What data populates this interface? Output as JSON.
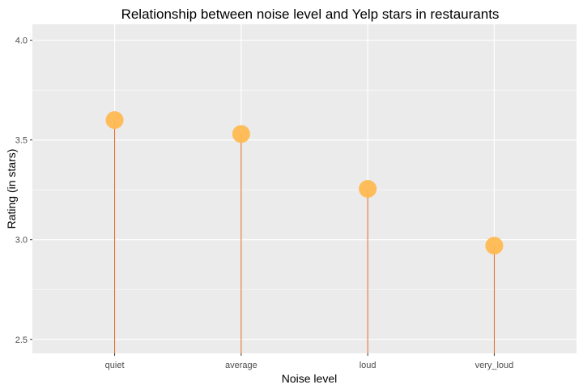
{
  "chart_data": {
    "type": "lollipop",
    "title": "Relationship between noise level and Yelp stars in restaurants",
    "xlabel": "Noise level",
    "ylabel": "Rating (in stars)",
    "categories": [
      "quiet",
      "average",
      "loud",
      "very_loud"
    ],
    "values": [
      3.6,
      3.53,
      3.255,
      2.97
    ],
    "ylim": [
      2.43,
      4.08
    ],
    "yticks": [
      2.5,
      3.0,
      3.5,
      4.0
    ],
    "ytick_labels": [
      "2.5",
      "3.0",
      "3.5",
      "4.0"
    ],
    "grid": true,
    "colors": {
      "panel": "#EBEBEB",
      "grid": "#FFFFFF",
      "stem": "#E0631F",
      "point": "#FFB84D"
    }
  }
}
